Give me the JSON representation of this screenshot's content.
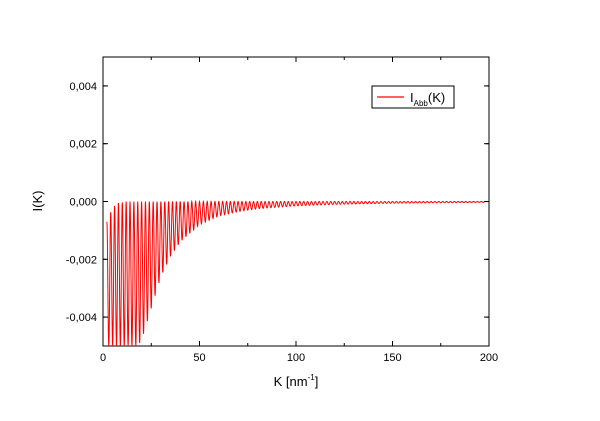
{
  "chart_data": {
    "type": "line",
    "title": "",
    "xlabel": {
      "main": "K [nm",
      "sup": "-1",
      "close": "]"
    },
    "ylabel": "I(K)",
    "xlim": [
      0,
      200
    ],
    "ylim": [
      -0.005,
      0.005
    ],
    "xticks": [
      0,
      50,
      100,
      150,
      200
    ],
    "xtick_labels": [
      "0",
      "50",
      "100",
      "150",
      "200"
    ],
    "yticks": [
      -0.004,
      -0.002,
      0.0,
      0.002,
      0.004
    ],
    "ytick_labels": [
      "-0,004",
      "-0,002",
      "0,000",
      "0,002",
      "0,004"
    ],
    "grid": false,
    "legend_position": "top-right",
    "series": [
      {
        "name": {
          "main": "I",
          "sub": "Abb",
          "tail": "(K)"
        },
        "color": "#ff0000",
        "description_of_shape": "oscillating signal, period ~2 nm^-1, upper envelope near 0, lower envelope decaying",
        "period": 2.0,
        "envelope_K": [
          2,
          5,
          8,
          10,
          13,
          16,
          18,
          20,
          25,
          30,
          35,
          40,
          50,
          60,
          70,
          80,
          100,
          120,
          150,
          180,
          198
        ],
        "envelope_min": [
          -0.005,
          -0.005,
          -0.005,
          -0.005,
          -0.005,
          -0.005,
          -0.005,
          -0.0048,
          -0.0037,
          -0.0026,
          -0.0019,
          -0.0014,
          -0.0008,
          -0.0005,
          -0.00035,
          -0.00025,
          -0.00015,
          -0.0001,
          -6e-05,
          -4e-05,
          -3e-05
        ],
        "upper_K": [
          2,
          5,
          8,
          12,
          20,
          40,
          198
        ],
        "upper_max": [
          -0.0007,
          -0.0002,
          -5e-05,
          0.0,
          0.0,
          0.0,
          0.0
        ]
      }
    ]
  }
}
